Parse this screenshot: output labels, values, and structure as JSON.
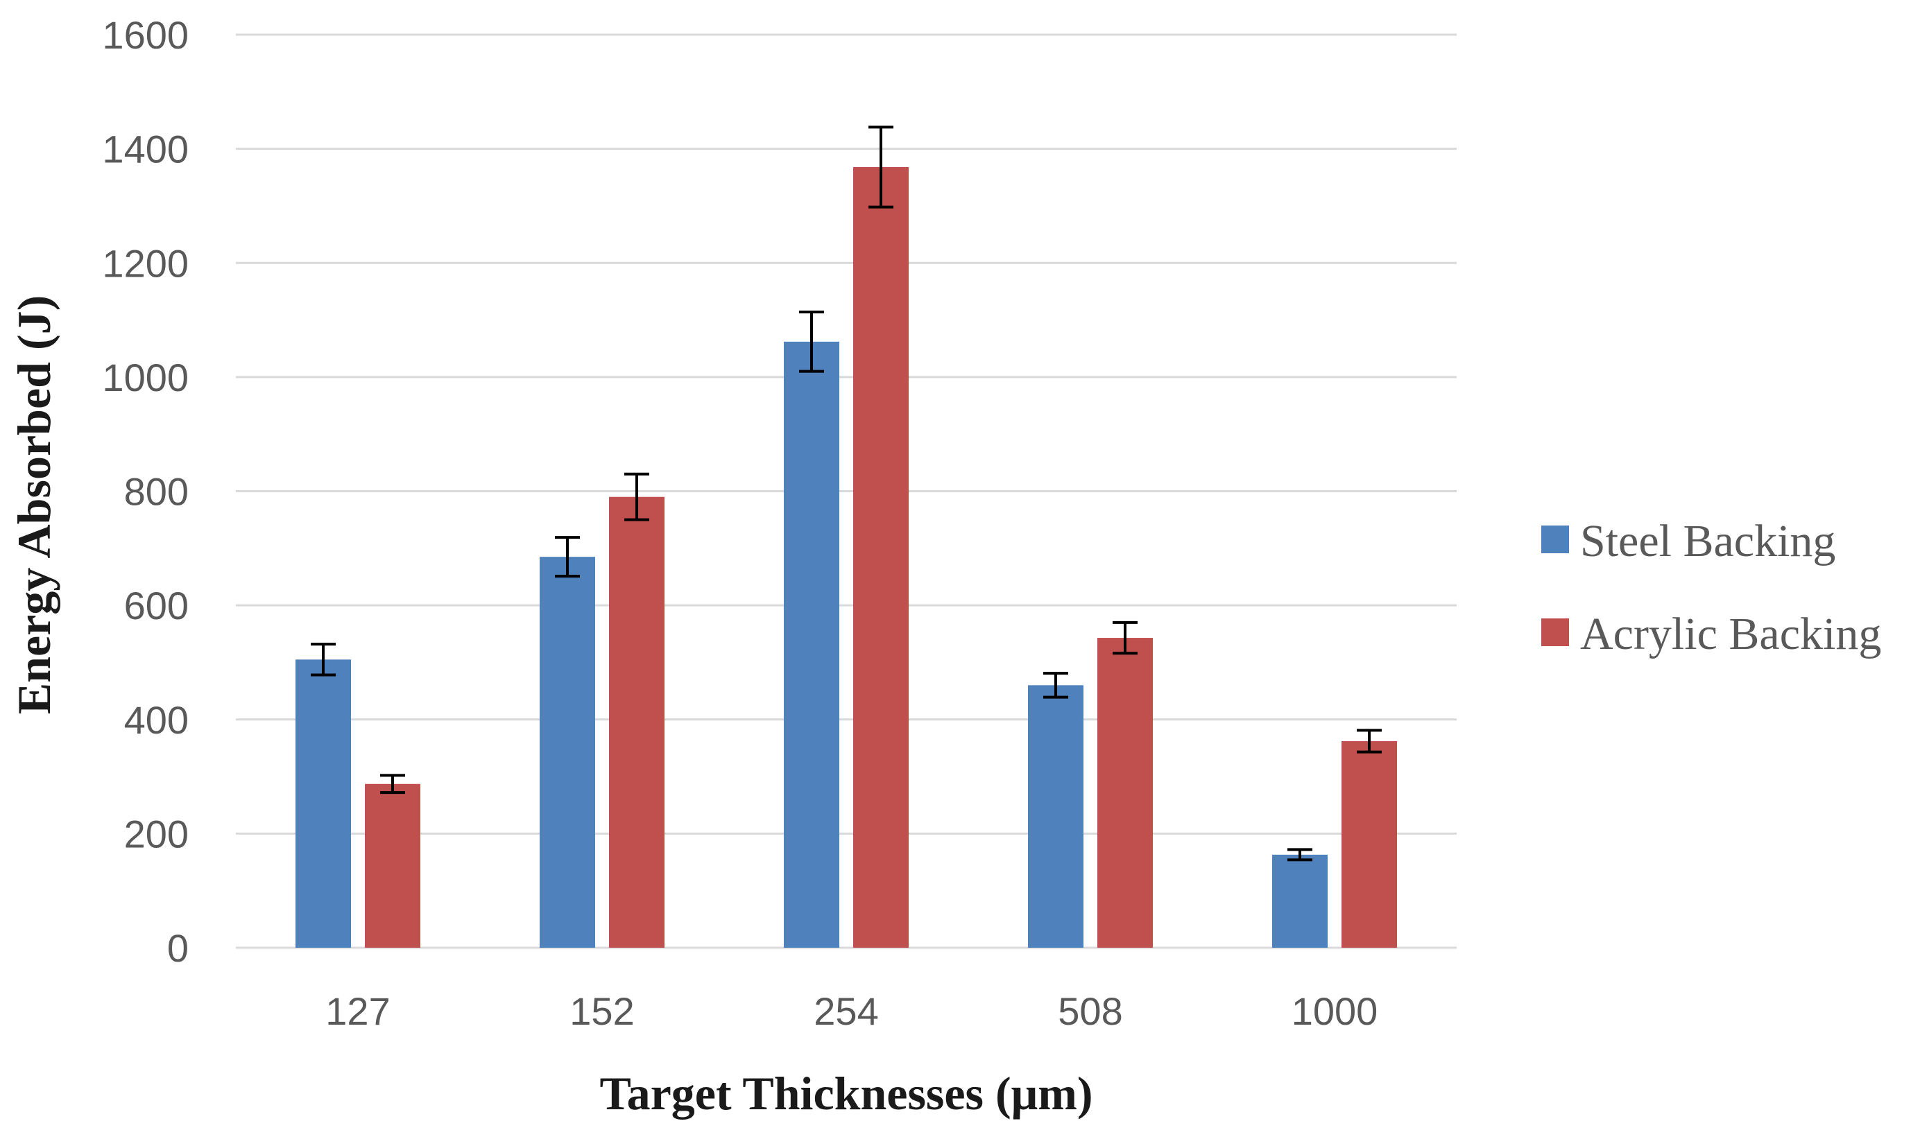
{
  "chart_data": {
    "type": "bar",
    "categories": [
      "127",
      "152",
      "254",
      "508",
      "1000"
    ],
    "series": [
      {
        "name": "Steel Backing",
        "color": "#4f81bd",
        "values": [
          505,
          685,
          1062,
          460,
          163
        ],
        "errors": [
          27,
          34,
          52,
          21,
          9
        ]
      },
      {
        "name": "Acrylic Backing",
        "color": "#c0504d",
        "values": [
          287,
          790,
          1368,
          543,
          362
        ],
        "errors": [
          15,
          40,
          70,
          27,
          19
        ]
      }
    ],
    "xlabel": "Target Thicknesses (μm)",
    "ylabel": "Energy Absorbed (J)",
    "ylim": [
      0,
      1600
    ],
    "yticks": [
      0,
      200,
      400,
      600,
      800,
      1000,
      1200,
      1400,
      1600
    ],
    "grid": true,
    "gridColor": "#d9d9d9",
    "legend_position": "right"
  }
}
